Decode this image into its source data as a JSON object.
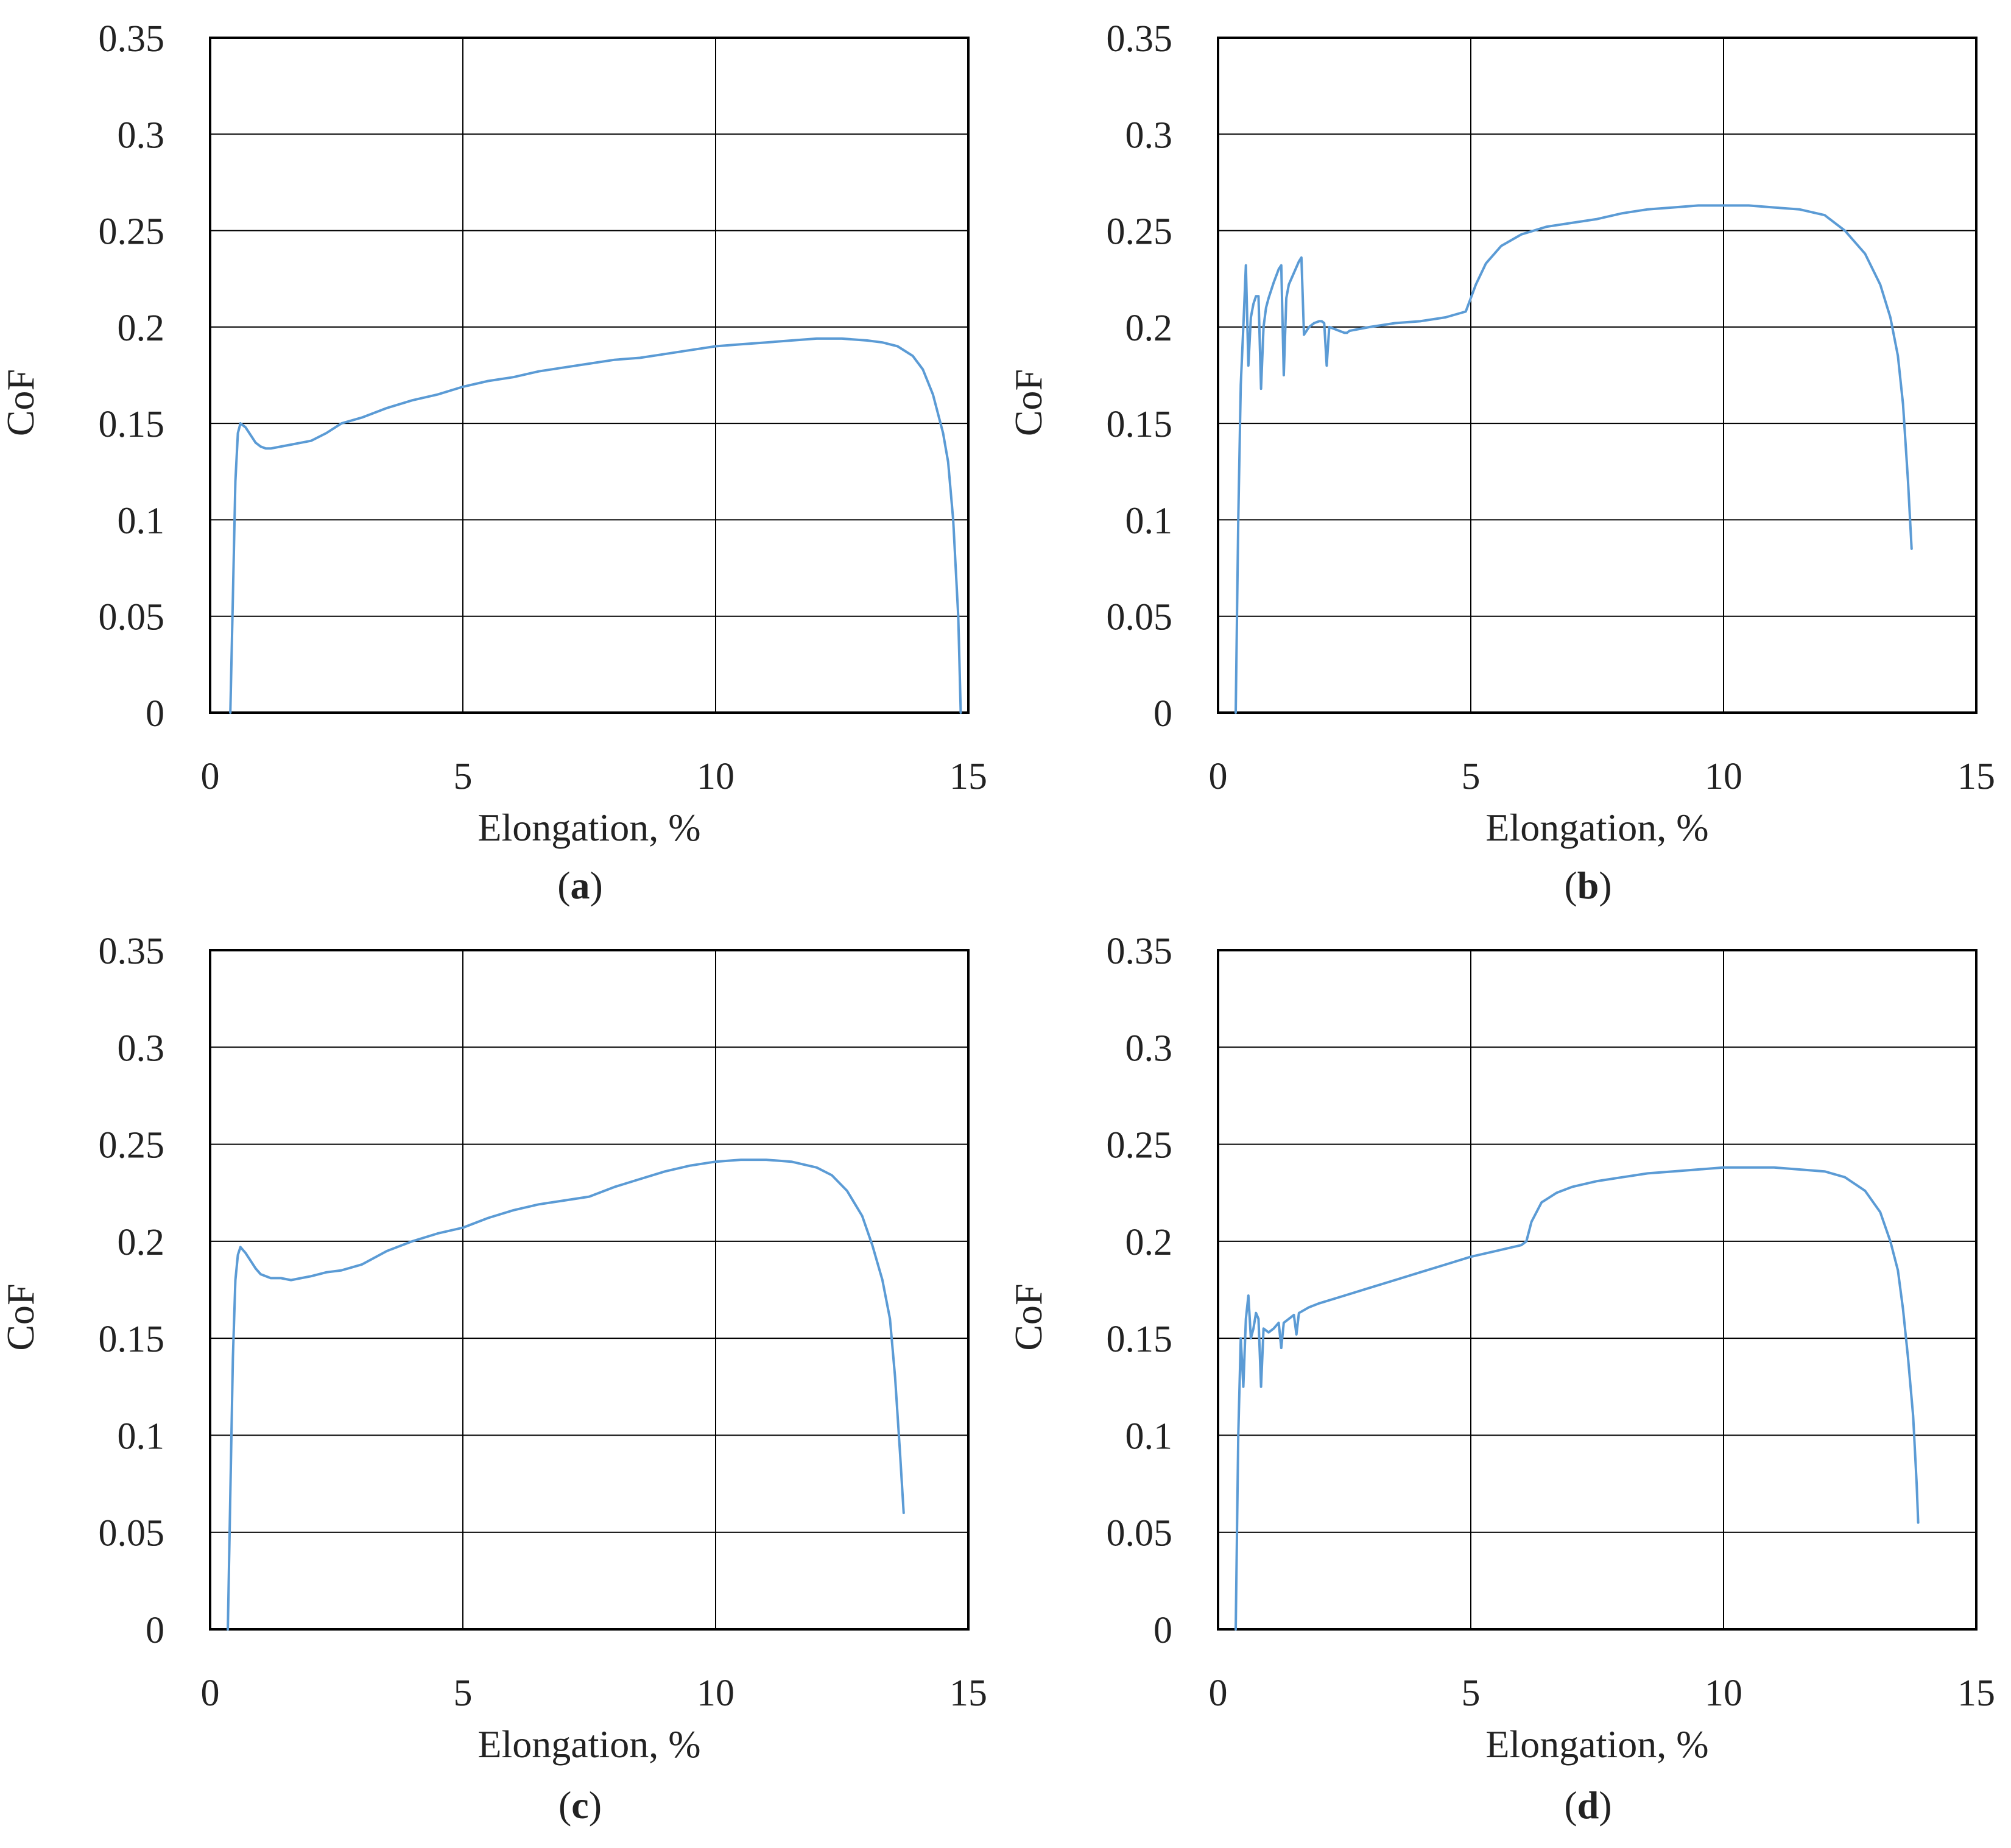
{
  "colors": {
    "series": "#5b9bd5",
    "grid": "#000000",
    "text": "#222222"
  },
  "chart_data": [
    {
      "panel": "a",
      "label": "a",
      "type": "line",
      "xlabel": "Elongation, %",
      "ylabel": "CoF",
      "xlim": [
        0,
        15
      ],
      "ylim": [
        0,
        0.35
      ],
      "xticks": [
        "0",
        "5",
        "10",
        "15"
      ],
      "yticks": [
        "0",
        "0.05",
        "0.1",
        "0.15",
        "0.2",
        "0.25",
        "0.3",
        "0.35"
      ],
      "grid": true,
      "series": [
        {
          "x": [
            0.4,
            0.45,
            0.5,
            0.55,
            0.6,
            0.7,
            0.8,
            0.9,
            1.0,
            1.1,
            1.2,
            1.4,
            1.6,
            1.8,
            2.0,
            2.3,
            2.6,
            3.0,
            3.5,
            4.0,
            4.5,
            5.0,
            5.5,
            6.0,
            6.5,
            7.0,
            7.5,
            8.0,
            8.5,
            9.0,
            9.5,
            10.0,
            10.5,
            11.0,
            11.5,
            12.0,
            12.5,
            13.0,
            13.3,
            13.6,
            13.9,
            14.1,
            14.3,
            14.5,
            14.6,
            14.7,
            14.8,
            14.85
          ],
          "y": [
            0.0,
            0.06,
            0.12,
            0.145,
            0.15,
            0.148,
            0.144,
            0.14,
            0.138,
            0.137,
            0.137,
            0.138,
            0.139,
            0.14,
            0.141,
            0.145,
            0.15,
            0.153,
            0.158,
            0.162,
            0.165,
            0.169,
            0.172,
            0.174,
            0.177,
            0.179,
            0.181,
            0.183,
            0.184,
            0.186,
            0.188,
            0.19,
            0.191,
            0.192,
            0.193,
            0.194,
            0.194,
            0.193,
            0.192,
            0.19,
            0.185,
            0.178,
            0.165,
            0.145,
            0.13,
            0.1,
            0.05,
            0.0
          ]
        }
      ]
    },
    {
      "panel": "b",
      "label": "b",
      "type": "line",
      "xlabel": "Elongation, %",
      "ylabel": "CoF",
      "xlim": [
        0,
        15
      ],
      "ylim": [
        0,
        0.35
      ],
      "xticks": [
        "0",
        "5",
        "10",
        "15"
      ],
      "yticks": [
        "0",
        "0.05",
        "0.1",
        "0.15",
        "0.2",
        "0.25",
        "0.3",
        "0.35"
      ],
      "grid": true,
      "series": [
        {
          "x": [
            0.35,
            0.4,
            0.45,
            0.5,
            0.55,
            0.6,
            0.65,
            0.7,
            0.75,
            0.8,
            0.85,
            0.9,
            0.95,
            1.0,
            1.1,
            1.2,
            1.25,
            1.3,
            1.35,
            1.4,
            1.5,
            1.6,
            1.65,
            1.7,
            1.8,
            1.9,
            2.0,
            2.05,
            2.1,
            2.15,
            2.2,
            2.3,
            2.4,
            2.5,
            2.55,
            2.6,
            2.8,
            3.0,
            3.5,
            4.0,
            4.5,
            4.9,
            5.1,
            5.3,
            5.6,
            6.0,
            6.5,
            7.0,
            7.5,
            8.0,
            8.5,
            9.0,
            9.5,
            10.0,
            10.5,
            11.0,
            11.5,
            12.0,
            12.4,
            12.8,
            13.1,
            13.3,
            13.45,
            13.55,
            13.65,
            13.72
          ],
          "y": [
            0.0,
            0.1,
            0.17,
            0.2,
            0.232,
            0.18,
            0.205,
            0.212,
            0.216,
            0.216,
            0.168,
            0.2,
            0.21,
            0.215,
            0.223,
            0.23,
            0.232,
            0.175,
            0.215,
            0.222,
            0.228,
            0.234,
            0.236,
            0.196,
            0.2,
            0.202,
            0.203,
            0.203,
            0.202,
            0.18,
            0.2,
            0.199,
            0.198,
            0.197,
            0.197,
            0.198,
            0.199,
            0.2,
            0.202,
            0.203,
            0.205,
            0.208,
            0.222,
            0.233,
            0.242,
            0.248,
            0.252,
            0.254,
            0.256,
            0.259,
            0.261,
            0.262,
            0.263,
            0.263,
            0.263,
            0.262,
            0.261,
            0.258,
            0.25,
            0.238,
            0.222,
            0.205,
            0.185,
            0.16,
            0.12,
            0.085
          ]
        }
      ]
    },
    {
      "panel": "c",
      "label": "c",
      "type": "line",
      "xlabel": "Elongation, %",
      "ylabel": "CoF",
      "xlim": [
        0,
        15
      ],
      "ylim": [
        0,
        0.35
      ],
      "xticks": [
        "0",
        "5",
        "10",
        "15"
      ],
      "yticks": [
        "0",
        "0.05",
        "0.1",
        "0.15",
        "0.2",
        "0.25",
        "0.3",
        "0.35"
      ],
      "grid": true,
      "series": [
        {
          "x": [
            0.35,
            0.4,
            0.45,
            0.5,
            0.55,
            0.6,
            0.7,
            0.8,
            0.9,
            1.0,
            1.2,
            1.4,
            1.6,
            1.8,
            2.0,
            2.3,
            2.6,
            3.0,
            3.5,
            4.0,
            4.5,
            5.0,
            5.5,
            6.0,
            6.5,
            7.0,
            7.5,
            8.0,
            8.5,
            9.0,
            9.5,
            10.0,
            10.5,
            11.0,
            11.5,
            12.0,
            12.3,
            12.6,
            12.9,
            13.1,
            13.3,
            13.45,
            13.55,
            13.65,
            13.72
          ],
          "y": [
            0.0,
            0.07,
            0.14,
            0.18,
            0.193,
            0.197,
            0.194,
            0.19,
            0.186,
            0.183,
            0.181,
            0.181,
            0.18,
            0.181,
            0.182,
            0.184,
            0.185,
            0.188,
            0.195,
            0.2,
            0.204,
            0.207,
            0.212,
            0.216,
            0.219,
            0.221,
            0.223,
            0.228,
            0.232,
            0.236,
            0.239,
            0.241,
            0.242,
            0.242,
            0.241,
            0.238,
            0.234,
            0.226,
            0.213,
            0.198,
            0.18,
            0.16,
            0.13,
            0.09,
            0.06
          ]
        }
      ]
    },
    {
      "panel": "d",
      "label": "d",
      "type": "line",
      "xlabel": "Elongation, %",
      "ylabel": "CoF",
      "xlim": [
        0,
        15
      ],
      "ylim": [
        0,
        0.35
      ],
      "xticks": [
        "0",
        "5",
        "10",
        "15"
      ],
      "yticks": [
        "0",
        "0.05",
        "0.1",
        "0.15",
        "0.2",
        "0.25",
        "0.3",
        "0.35"
      ],
      "grid": true,
      "series": [
        {
          "x": [
            0.35,
            0.4,
            0.45,
            0.5,
            0.55,
            0.6,
            0.65,
            0.7,
            0.75,
            0.8,
            0.85,
            0.9,
            1.0,
            1.1,
            1.2,
            1.25,
            1.3,
            1.4,
            1.5,
            1.55,
            1.6,
            1.8,
            2.0,
            2.5,
            3.0,
            3.5,
            4.0,
            4.5,
            5.0,
            5.5,
            6.0,
            6.1,
            6.2,
            6.4,
            6.7,
            7.0,
            7.5,
            8.0,
            8.5,
            9.0,
            9.5,
            10.0,
            10.5,
            11.0,
            11.5,
            12.0,
            12.4,
            12.8,
            13.1,
            13.3,
            13.45,
            13.55,
            13.65,
            13.75,
            13.82,
            13.85
          ],
          "y": [
            0.0,
            0.1,
            0.15,
            0.125,
            0.16,
            0.172,
            0.15,
            0.155,
            0.163,
            0.16,
            0.125,
            0.155,
            0.153,
            0.155,
            0.158,
            0.145,
            0.158,
            0.16,
            0.162,
            0.152,
            0.163,
            0.166,
            0.168,
            0.172,
            0.176,
            0.18,
            0.184,
            0.188,
            0.192,
            0.195,
            0.198,
            0.2,
            0.21,
            0.22,
            0.225,
            0.228,
            0.231,
            0.233,
            0.235,
            0.236,
            0.237,
            0.238,
            0.238,
            0.238,
            0.237,
            0.236,
            0.233,
            0.226,
            0.215,
            0.2,
            0.185,
            0.165,
            0.14,
            0.11,
            0.075,
            0.055
          ]
        }
      ]
    }
  ]
}
